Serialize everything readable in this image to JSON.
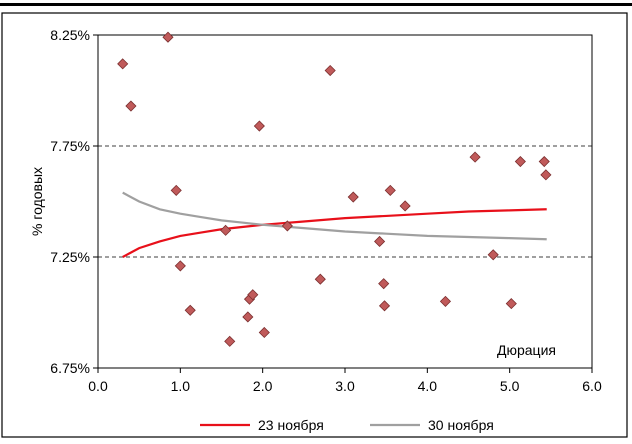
{
  "chart_data": {
    "type": "scatter",
    "title": "",
    "xlabel": "Дюрация",
    "ylabel": "% годовых",
    "xlim": [
      0,
      6
    ],
    "ylim": [
      6.75,
      8.25
    ],
    "x_ticks": [
      0,
      1,
      2,
      3,
      4,
      5,
      6
    ],
    "x_tick_labels": [
      "0.0",
      "1.0",
      "2.0",
      "3.0",
      "4.0",
      "5.0",
      "6.0"
    ],
    "y_ticks": [
      6.75,
      7.25,
      7.75,
      8.25
    ],
    "y_tick_labels": [
      "6.75%",
      "7.25%",
      "7.75%",
      "8.25%"
    ],
    "gridlines": "horizontal dashed at 7.25% and 7.75%",
    "legend_position": "bottom",
    "points_color": "#c05a5a",
    "points": [
      {
        "x": 0.3,
        "y": 8.12
      },
      {
        "x": 0.4,
        "y": 7.93
      },
      {
        "x": 0.85,
        "y": 8.24
      },
      {
        "x": 0.95,
        "y": 7.55
      },
      {
        "x": 1.0,
        "y": 7.21
      },
      {
        "x": 1.12,
        "y": 7.01
      },
      {
        "x": 1.55,
        "y": 7.37
      },
      {
        "x": 1.6,
        "y": 6.87
      },
      {
        "x": 1.82,
        "y": 6.98
      },
      {
        "x": 1.84,
        "y": 7.06
      },
      {
        "x": 1.88,
        "y": 7.08
      },
      {
        "x": 1.96,
        "y": 7.84
      },
      {
        "x": 2.02,
        "y": 6.91
      },
      {
        "x": 2.3,
        "y": 7.39
      },
      {
        "x": 2.7,
        "y": 7.15
      },
      {
        "x": 2.82,
        "y": 8.09
      },
      {
        "x": 3.1,
        "y": 7.52
      },
      {
        "x": 3.42,
        "y": 7.32
      },
      {
        "x": 3.47,
        "y": 7.13
      },
      {
        "x": 3.48,
        "y": 7.03
      },
      {
        "x": 3.55,
        "y": 7.55
      },
      {
        "x": 3.73,
        "y": 7.48
      },
      {
        "x": 4.22,
        "y": 7.05
      },
      {
        "x": 4.58,
        "y": 7.7
      },
      {
        "x": 4.8,
        "y": 7.26
      },
      {
        "x": 5.02,
        "y": 7.04
      },
      {
        "x": 5.13,
        "y": 7.68
      },
      {
        "x": 5.42,
        "y": 7.68
      },
      {
        "x": 5.44,
        "y": 7.62
      }
    ],
    "series": [
      {
        "name": "23 ноября",
        "color": "#e8101a",
        "x": [
          0.3,
          0.5,
          0.75,
          1.0,
          1.25,
          1.5,
          1.75,
          2.0,
          2.5,
          3.0,
          3.5,
          4.0,
          4.5,
          5.0,
          5.45
        ],
        "y": [
          7.25,
          7.29,
          7.32,
          7.345,
          7.36,
          7.375,
          7.385,
          7.395,
          7.41,
          7.425,
          7.435,
          7.445,
          7.455,
          7.46,
          7.465
        ]
      },
      {
        "name": "30 ноября",
        "color": "#a0a0a0",
        "x": [
          0.3,
          0.5,
          0.75,
          1.0,
          1.25,
          1.5,
          1.75,
          2.0,
          2.5,
          3.0,
          3.5,
          4.0,
          4.5,
          5.0,
          5.45
        ],
        "y": [
          7.54,
          7.5,
          7.465,
          7.445,
          7.43,
          7.415,
          7.405,
          7.395,
          7.38,
          7.365,
          7.355,
          7.345,
          7.34,
          7.335,
          7.33
        ]
      }
    ]
  }
}
